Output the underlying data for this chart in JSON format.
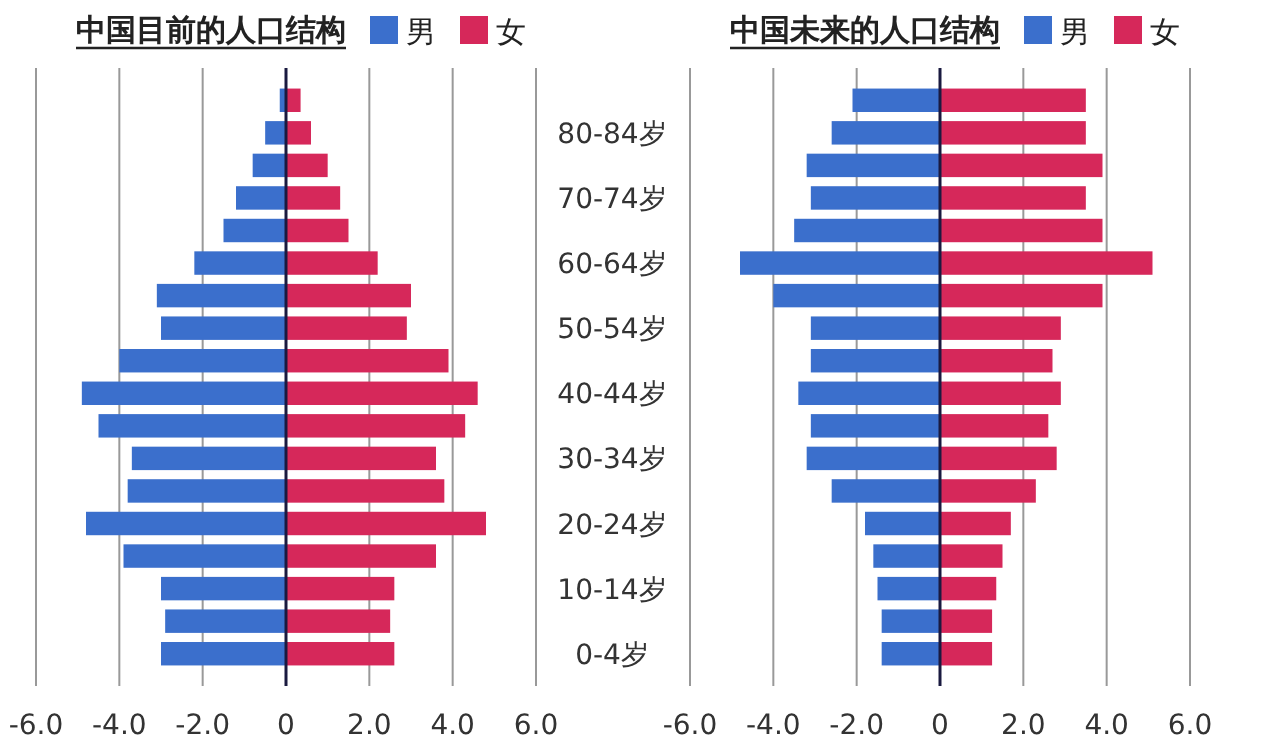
{
  "chart_data": [
    {
      "type": "bar",
      "orientation": "horizontal",
      "stacked": true,
      "title": "中国目前的人口结构",
      "categories": [
        null,
        "80-84岁",
        null,
        "70-74岁",
        null,
        "60-64岁",
        null,
        "50-54岁",
        null,
        "40-44岁",
        null,
        "30-34岁",
        null,
        "20-24岁",
        null,
        "10-14岁",
        null,
        "0-4岁"
      ],
      "series": [
        {
          "name": "男",
          "color": "#3b6fcc",
          "values": [
            -0.15,
            -0.5,
            -0.8,
            -1.2,
            -1.5,
            -2.2,
            -3.1,
            -3.0,
            -4.0,
            -4.9,
            -4.5,
            -3.7,
            -3.8,
            -4.8,
            -3.9,
            -3.0,
            -2.9,
            -3.0
          ]
        },
        {
          "name": "女",
          "color": "#d6285a",
          "values": [
            0.35,
            0.6,
            1.0,
            1.3,
            1.5,
            2.2,
            3.0,
            2.9,
            3.9,
            4.6,
            4.3,
            3.6,
            3.8,
            4.8,
            3.6,
            2.6,
            2.5,
            2.6
          ]
        }
      ],
      "xlim": [
        -6,
        6
      ],
      "xticks": [
        {
          "value": -6,
          "label": "-6.0"
        },
        {
          "value": -4,
          "label": "-4.0"
        },
        {
          "value": -2,
          "label": "-2.0"
        },
        0,
        {
          "value": 2,
          "label": "2.0"
        },
        {
          "value": 4,
          "label": "4.0"
        },
        {
          "value": 6,
          "label": "6.0"
        }
      ],
      "grid": "x",
      "legend": "top",
      "ref_lines": [
        {
          "axis": "x",
          "value": 0,
          "color": "#1a1a40"
        }
      ]
    },
    {
      "type": "bar",
      "orientation": "horizontal",
      "stacked": true,
      "title": "中国未来的人口结构",
      "categories": [
        null,
        null,
        null,
        null,
        null,
        null,
        null,
        null,
        null,
        null,
        null,
        null,
        null,
        null,
        null,
        null,
        null,
        null
      ],
      "series": [
        {
          "name": "男",
          "color": "#3b6fcc",
          "values": [
            -2.1,
            -2.6,
            -3.2,
            -3.1,
            -3.5,
            -4.8,
            -4.0,
            -3.1,
            -3.1,
            -3.4,
            -3.1,
            -3.2,
            -2.6,
            -1.8,
            -1.6,
            -1.5,
            -1.4,
            -1.4
          ]
        },
        {
          "name": "女",
          "color": "#d6285a",
          "values": [
            3.5,
            3.5,
            3.9,
            3.5,
            3.9,
            5.1,
            3.9,
            2.9,
            2.7,
            2.9,
            2.6,
            2.8,
            2.3,
            1.7,
            1.5,
            1.35,
            1.25,
            1.25
          ]
        }
      ],
      "xlim": [
        -6,
        6
      ],
      "xticks": [
        {
          "value": -6,
          "label": "-6.0"
        },
        {
          "value": -4,
          "label": "-4.0"
        },
        {
          "value": -2,
          "label": "-2.0"
        },
        0,
        {
          "value": 2,
          "label": "2.0"
        },
        {
          "value": 4,
          "label": "4.0"
        },
        {
          "value": 6,
          "label": "6.0"
        }
      ],
      "grid": "x",
      "legend": "top",
      "tick_labels": "x",
      "ref_lines": [
        {
          "axis": "x",
          "value": 0,
          "color": "#1a1a40"
        }
      ]
    }
  ]
}
